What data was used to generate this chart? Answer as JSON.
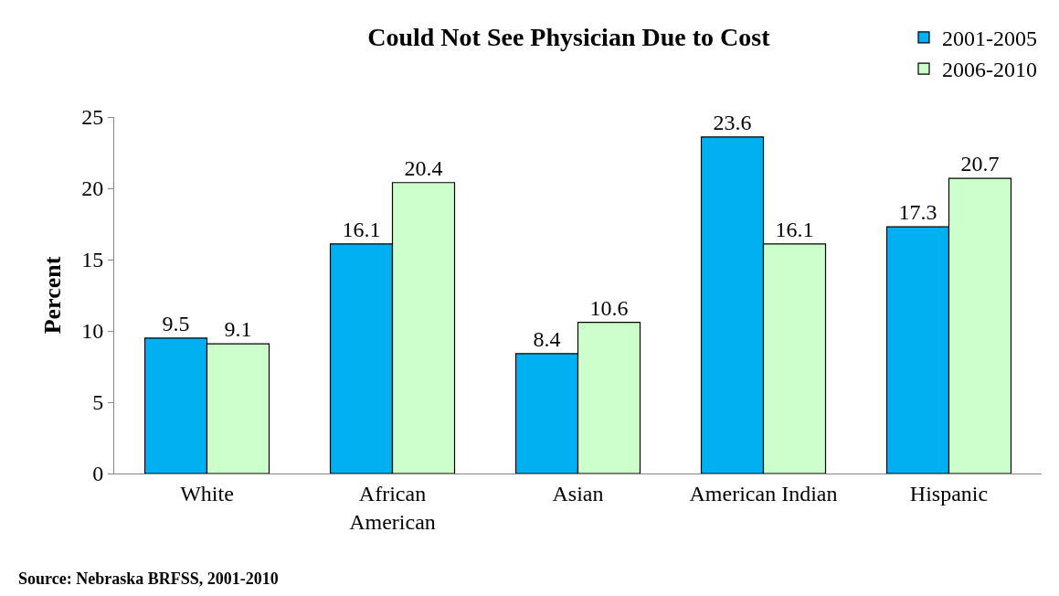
{
  "chart_data": {
    "type": "bar",
    "title": "Could Not See Physician Due to Cost",
    "ylabel": "Percent",
    "categories": [
      "White",
      "African\nAmerican",
      "Asian",
      "American Indian",
      "Hispanic"
    ],
    "series": [
      {
        "name": "2001-2005",
        "color": "#00b0f0",
        "values": [
          9.5,
          16.1,
          8.4,
          23.6,
          17.3
        ]
      },
      {
        "name": "2006-2010",
        "color": "#ccffcc",
        "values": [
          9.1,
          20.4,
          10.6,
          16.1,
          20.7
        ]
      }
    ],
    "ylim": [
      0,
      25
    ],
    "yticks": [
      0,
      5,
      10,
      15,
      20,
      25
    ],
    "legend": "top right",
    "data_labels": true,
    "annotations": [
      "Source: Nebraska BRFSS, 2001-2010"
    ]
  }
}
